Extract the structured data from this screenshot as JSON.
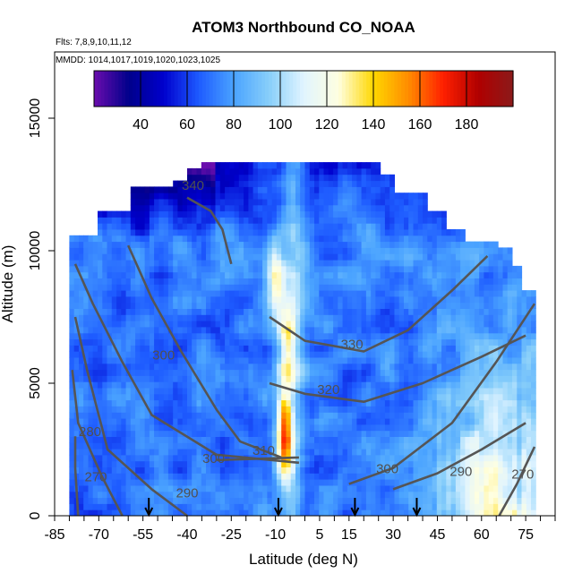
{
  "chart_data": {
    "type": "heatmap",
    "title": "ATOM3 Northbound CO_NOAA",
    "annotations": {
      "flights": "Flts: 7,8,9,10,11,12",
      "dates": "MMDD: 1014,1017,1019,1020,1023,1025"
    },
    "xlabel": "Latitude (deg N)",
    "ylabel": "Altitude (m)",
    "xlim": [
      -85,
      85
    ],
    "ylim": [
      0,
      17500
    ],
    "x_tick_labels": [
      "-85",
      "-70",
      "-55",
      "-40",
      "-25",
      "-10",
      "5",
      "15",
      "30",
      "45",
      "60",
      "75"
    ],
    "x_tick_values": [
      -85,
      -70,
      -55,
      -40,
      -25,
      -10,
      5,
      15,
      30,
      45,
      60,
      75
    ],
    "y_tick_labels": [
      "0",
      "5000",
      "10000",
      "15000"
    ],
    "y_tick_values": [
      0,
      5000,
      10000,
      15000
    ],
    "colorbar": {
      "range": [
        20,
        200
      ],
      "tick_labels": [
        "40",
        "60",
        "80",
        "100",
        "120",
        "140",
        "160",
        "180"
      ],
      "tick_values": [
        40,
        60,
        80,
        100,
        120,
        140,
        160,
        180
      ],
      "colors": [
        "#6a0dad",
        "#00008b",
        "#0000cd",
        "#1e5bff",
        "#4aa3ff",
        "#87cefa",
        "#e0f4ff",
        "#ffffe0",
        "#ffd700",
        "#ff8c00",
        "#ff2000",
        "#b00000",
        "#8b1a1a"
      ]
    },
    "contours": [
      {
        "label": "270",
        "label_pos": [
          -71,
          1300
        ],
        "points": [
          [
            -77,
            0
          ],
          [
            -78,
            1800
          ],
          [
            -78,
            3000
          ]
        ]
      },
      {
        "label": "280",
        "label_pos": [
          -73,
          3000
        ],
        "points": [
          [
            -62,
            0
          ],
          [
            -69,
            1500
          ],
          [
            -77,
            3500
          ],
          [
            -79,
            5500
          ]
        ]
      },
      {
        "label": "290",
        "label_pos": [
          -40,
          700
        ],
        "points": [
          [
            -40,
            0
          ],
          [
            -52,
            1000
          ],
          [
            -67,
            2500
          ],
          [
            -74,
            5500
          ],
          [
            -78,
            7500
          ]
        ]
      },
      {
        "label": "300",
        "label_pos": [
          -48,
          5900
        ],
        "points": [
          [
            -2,
            2000
          ],
          [
            -30,
            2300
          ],
          [
            -52,
            3800
          ],
          [
            -62,
            5800
          ],
          [
            -72,
            8000
          ],
          [
            -78,
            9500
          ]
        ]
      },
      {
        "label": "300",
        "label_pos": [
          -31,
          2000
        ],
        "points": [
          [
            -2,
            2200
          ],
          [
            -30,
            2100
          ]
        ]
      },
      {
        "label": "310",
        "label_pos": [
          -14,
          2300
        ],
        "points": [
          [
            -8,
            2200
          ],
          [
            -22,
            2800
          ],
          [
            -30,
            4000
          ],
          [
            -42,
            6200
          ],
          [
            -52,
            8200
          ],
          [
            -60,
            10200
          ]
        ]
      },
      {
        "label": "320",
        "label_pos": [
          8,
          4600
        ],
        "points": [
          [
            -12,
            5000
          ],
          [
            0,
            4600
          ],
          [
            20,
            4300
          ],
          [
            40,
            5000
          ],
          [
            60,
            6000
          ],
          [
            75,
            6800
          ]
        ]
      },
      {
        "label": "330",
        "label_pos": [
          16,
          6300
        ],
        "points": [
          [
            -12,
            7500
          ],
          [
            0,
            6600
          ],
          [
            20,
            6200
          ],
          [
            35,
            7000
          ],
          [
            50,
            8500
          ],
          [
            62,
            9800
          ]
        ]
      },
      {
        "label": "340",
        "label_pos": [
          -38,
          12300
        ],
        "points": [
          [
            -40,
            12000
          ],
          [
            -32,
            11500
          ],
          [
            -28,
            10800
          ],
          [
            -25,
            9500
          ]
        ]
      },
      {
        "label": "290",
        "label_pos": [
          53,
          1500
        ],
        "points": [
          [
            30,
            1000
          ],
          [
            45,
            1600
          ],
          [
            60,
            2500
          ],
          [
            75,
            3500
          ]
        ]
      },
      {
        "label": "270",
        "label_pos": [
          74,
          1400
        ],
        "points": [
          [
            66,
            0
          ],
          [
            72,
            1200
          ],
          [
            78,
            2600
          ]
        ]
      },
      {
        "label": "300",
        "label_pos": [
          28,
          1600
        ],
        "points": [
          [
            15,
            1200
          ],
          [
            30,
            1800
          ],
          [
            50,
            3500
          ],
          [
            65,
            5800
          ],
          [
            78,
            8000
          ]
        ]
      }
    ],
    "flight_markers_lat": [
      -53,
      -9,
      17,
      38
    ]
  }
}
